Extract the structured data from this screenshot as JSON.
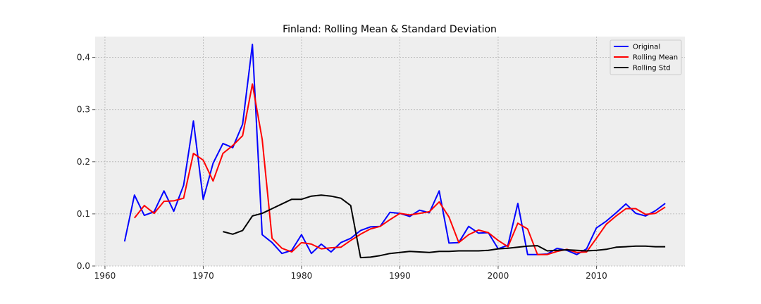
{
  "chart_data": {
    "type": "line",
    "title": "Finland: Rolling Mean & Standard Deviation",
    "xlabel": "",
    "ylabel": "",
    "xlim": [
      1959,
      2019
    ],
    "ylim": [
      0,
      0.44
    ],
    "x_ticks": [
      1960,
      1970,
      1980,
      1990,
      2000,
      2010
    ],
    "y_ticks": [
      0.0,
      0.1,
      0.2,
      0.3,
      0.4
    ],
    "y_tick_labels": [
      "0.0",
      "0.1",
      "0.2",
      "0.3",
      "0.4"
    ],
    "grid": true,
    "legend_position": "top-right",
    "series": [
      {
        "name": "Original",
        "color": "#0000ff",
        "x": [
          1962,
          1963,
          1964,
          1965,
          1966,
          1967,
          1968,
          1969,
          1970,
          1971,
          1972,
          1973,
          1974,
          1975,
          1976,
          1977,
          1978,
          1979,
          1980,
          1981,
          1982,
          1983,
          1984,
          1985,
          1986,
          1987,
          1988,
          1989,
          1990,
          1991,
          1992,
          1993,
          1994,
          1995,
          1996,
          1997,
          1998,
          1999,
          2000,
          2001,
          2002,
          2003,
          2004,
          2005,
          2006,
          2007,
          2008,
          2009,
          2010,
          2011,
          2012,
          2013,
          2014,
          2015,
          2016,
          2017
        ],
        "values": [
          0.047,
          0.136,
          0.097,
          0.104,
          0.144,
          0.105,
          0.155,
          0.278,
          0.128,
          0.197,
          0.235,
          0.227,
          0.272,
          0.425,
          0.06,
          0.045,
          0.024,
          0.03,
          0.06,
          0.024,
          0.042,
          0.027,
          0.045,
          0.053,
          0.068,
          0.075,
          0.076,
          0.103,
          0.101,
          0.095,
          0.107,
          0.102,
          0.144,
          0.044,
          0.045,
          0.076,
          0.063,
          0.064,
          0.033,
          0.04,
          0.12,
          0.022,
          0.022,
          0.023,
          0.034,
          0.03,
          0.022,
          0.033,
          0.073,
          0.086,
          0.102,
          0.119,
          0.101,
          0.096,
          0.106,
          0.12
        ]
      },
      {
        "name": "Rolling Mean",
        "color": "#ff0000",
        "x": [
          1963,
          1964,
          1965,
          1966,
          1967,
          1968,
          1969,
          1970,
          1971,
          1972,
          1973,
          1974,
          1975,
          1976,
          1977,
          1978,
          1979,
          1980,
          1981,
          1982,
          1983,
          1984,
          1985,
          1986,
          1987,
          1988,
          1989,
          1990,
          1991,
          1992,
          1993,
          1994,
          1995,
          1996,
          1997,
          1998,
          1999,
          2000,
          2001,
          2002,
          2003,
          2004,
          2005,
          2006,
          2007,
          2008,
          2009,
          2010,
          2011,
          2012,
          2013,
          2014,
          2015,
          2016,
          2017
        ],
        "values": [
          0.092,
          0.116,
          0.101,
          0.124,
          0.125,
          0.13,
          0.216,
          0.203,
          0.163,
          0.216,
          0.231,
          0.25,
          0.349,
          0.243,
          0.053,
          0.034,
          0.027,
          0.045,
          0.042,
          0.033,
          0.035,
          0.036,
          0.049,
          0.061,
          0.071,
          0.076,
          0.089,
          0.101,
          0.098,
          0.101,
          0.104,
          0.123,
          0.094,
          0.045,
          0.06,
          0.069,
          0.064,
          0.049,
          0.037,
          0.082,
          0.071,
          0.022,
          0.022,
          0.028,
          0.032,
          0.026,
          0.027,
          0.053,
          0.08,
          0.096,
          0.11,
          0.11,
          0.099,
          0.101,
          0.113
        ]
      },
      {
        "name": "Rolling Std",
        "color": "#000000",
        "x": [
          1972,
          1973,
          1974,
          1975,
          1976,
          1977,
          1978,
          1979,
          1980,
          1981,
          1982,
          1983,
          1984,
          1985,
          1986,
          1987,
          1988,
          1989,
          1990,
          1991,
          1992,
          1993,
          1994,
          1995,
          1996,
          1997,
          1998,
          1999,
          2000,
          2001,
          2002,
          2003,
          2004,
          2005,
          2006,
          2007,
          2008,
          2009,
          2010,
          2011,
          2012,
          2013,
          2014,
          2015,
          2016,
          2017
        ],
        "values": [
          0.066,
          0.061,
          0.068,
          0.096,
          0.101,
          0.11,
          0.119,
          0.128,
          0.128,
          0.134,
          0.136,
          0.134,
          0.13,
          0.116,
          0.016,
          0.017,
          0.02,
          0.024,
          0.026,
          0.028,
          0.027,
          0.026,
          0.028,
          0.028,
          0.029,
          0.029,
          0.029,
          0.03,
          0.033,
          0.034,
          0.036,
          0.038,
          0.039,
          0.029,
          0.03,
          0.031,
          0.03,
          0.029,
          0.03,
          0.032,
          0.036,
          0.037,
          0.038,
          0.038,
          0.037,
          0.037
        ]
      }
    ]
  }
}
